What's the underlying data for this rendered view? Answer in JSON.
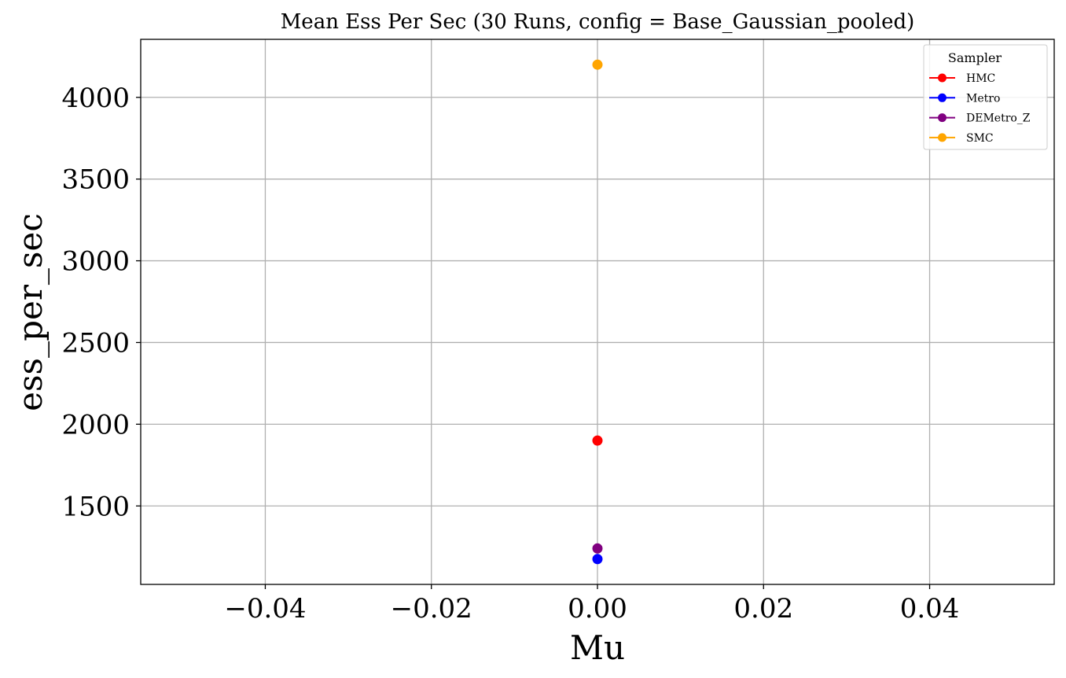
{
  "chart_data": {
    "type": "scatter",
    "title": "Mean Ess Per Sec (30 Runs, config = Base_Gaussian_pooled)",
    "xlabel": "Mu",
    "ylabel": "ess_per_sec",
    "xlim": [
      -0.055,
      0.055
    ],
    "ylim": [
      1020,
      4355
    ],
    "xticks": [
      -0.04,
      -0.02,
      0.0,
      0.02,
      0.04
    ],
    "xtick_labels": [
      "−0.04",
      "−0.02",
      "0.00",
      "0.02",
      "0.04"
    ],
    "yticks": [
      1500,
      2000,
      2500,
      3000,
      3500,
      4000
    ],
    "ytick_labels": [
      "1500",
      "2000",
      "2500",
      "3000",
      "3500",
      "4000"
    ],
    "grid": true,
    "legend": {
      "title": "Sampler",
      "position": "top-right"
    },
    "series": [
      {
        "name": "HMC",
        "color": "#ff0000",
        "x": [
          0.0
        ],
        "y": [
          1900
        ]
      },
      {
        "name": "Metro",
        "color": "#0000ff",
        "x": [
          0.0
        ],
        "y": [
          1175
        ]
      },
      {
        "name": "DEMetro_Z",
        "color": "#800080",
        "x": [
          0.0
        ],
        "y": [
          1240
        ]
      },
      {
        "name": "SMC",
        "color": "#ffa500",
        "x": [
          0.0
        ],
        "y": [
          4200
        ]
      }
    ]
  }
}
